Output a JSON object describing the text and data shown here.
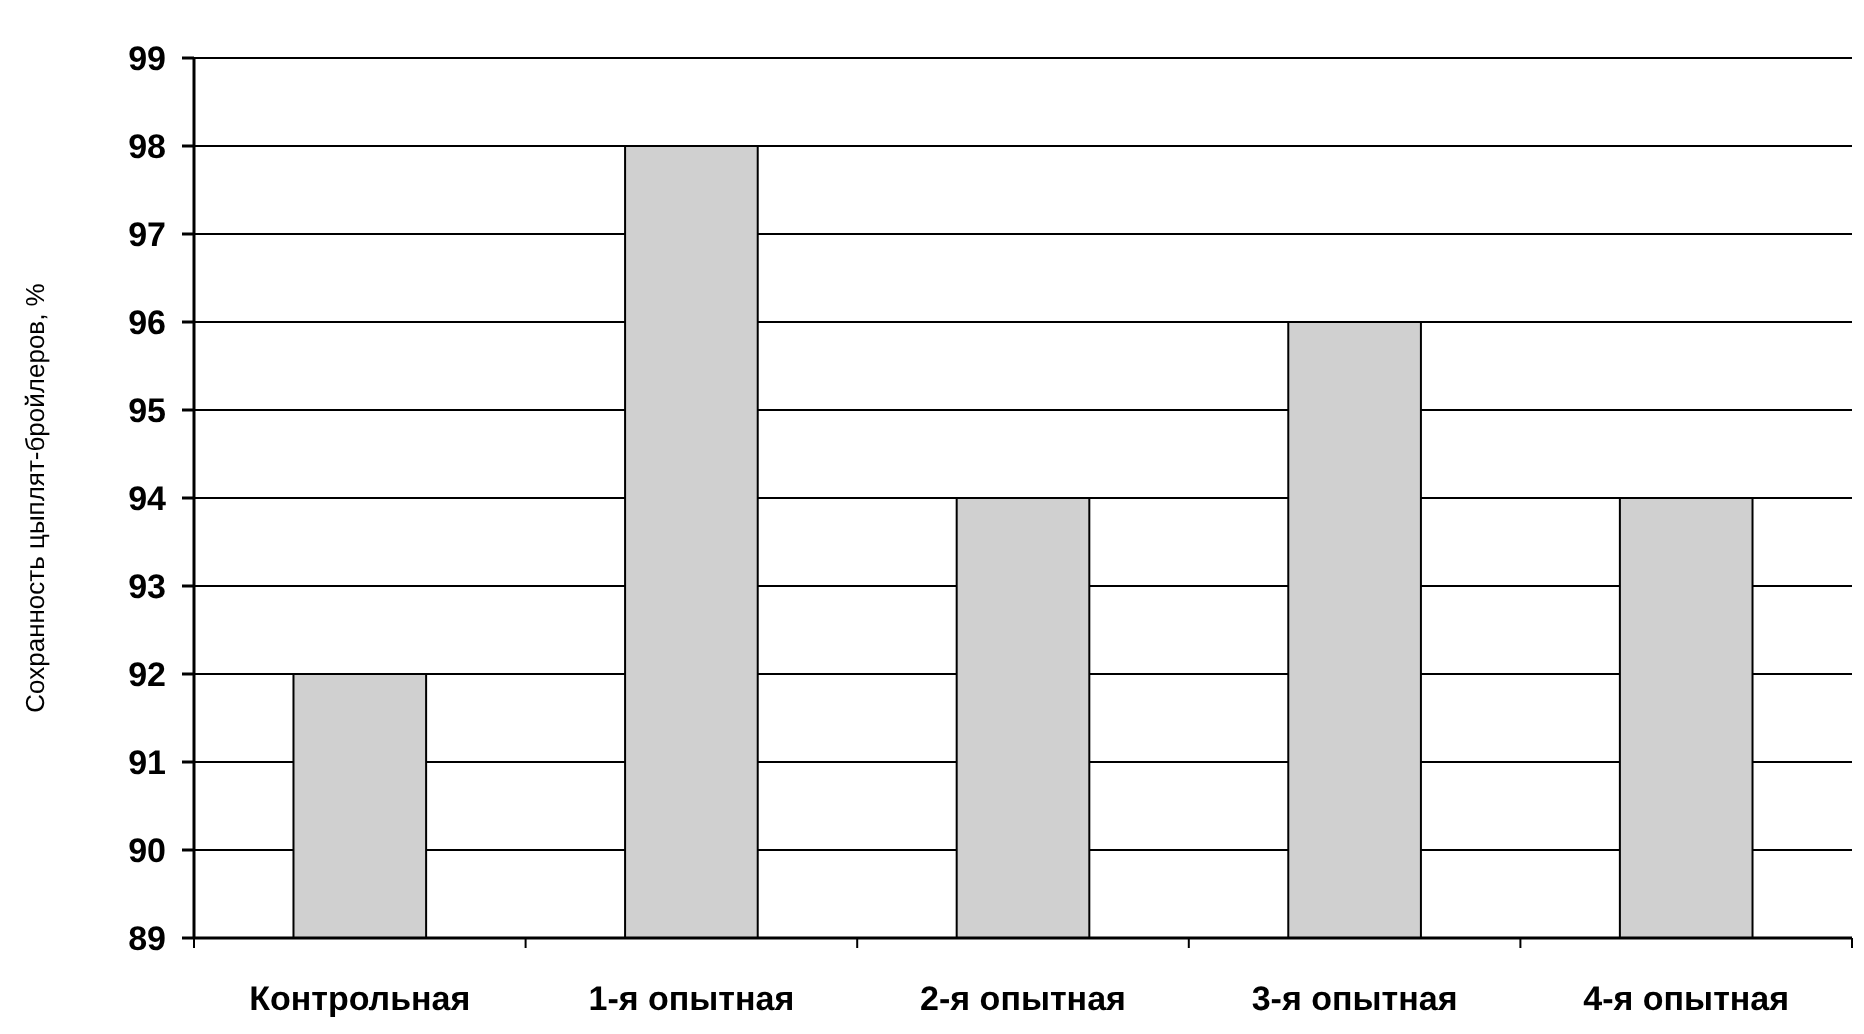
{
  "chart_data": {
    "type": "bar",
    "ylabel": "Сохранность цыплят-бройлеров, %",
    "categories": [
      "Контрольная",
      "1-я опытная",
      "2-я опытная",
      "3-я опытная",
      "4-я опытная"
    ],
    "values": [
      92,
      98,
      94,
      96,
      94
    ],
    "color": "#d0d0d0",
    "ylim": [
      89,
      99
    ],
    "yticks": [
      89,
      90,
      91,
      92,
      93,
      94,
      95,
      96,
      97,
      98,
      99
    ],
    "grid": "y"
  }
}
